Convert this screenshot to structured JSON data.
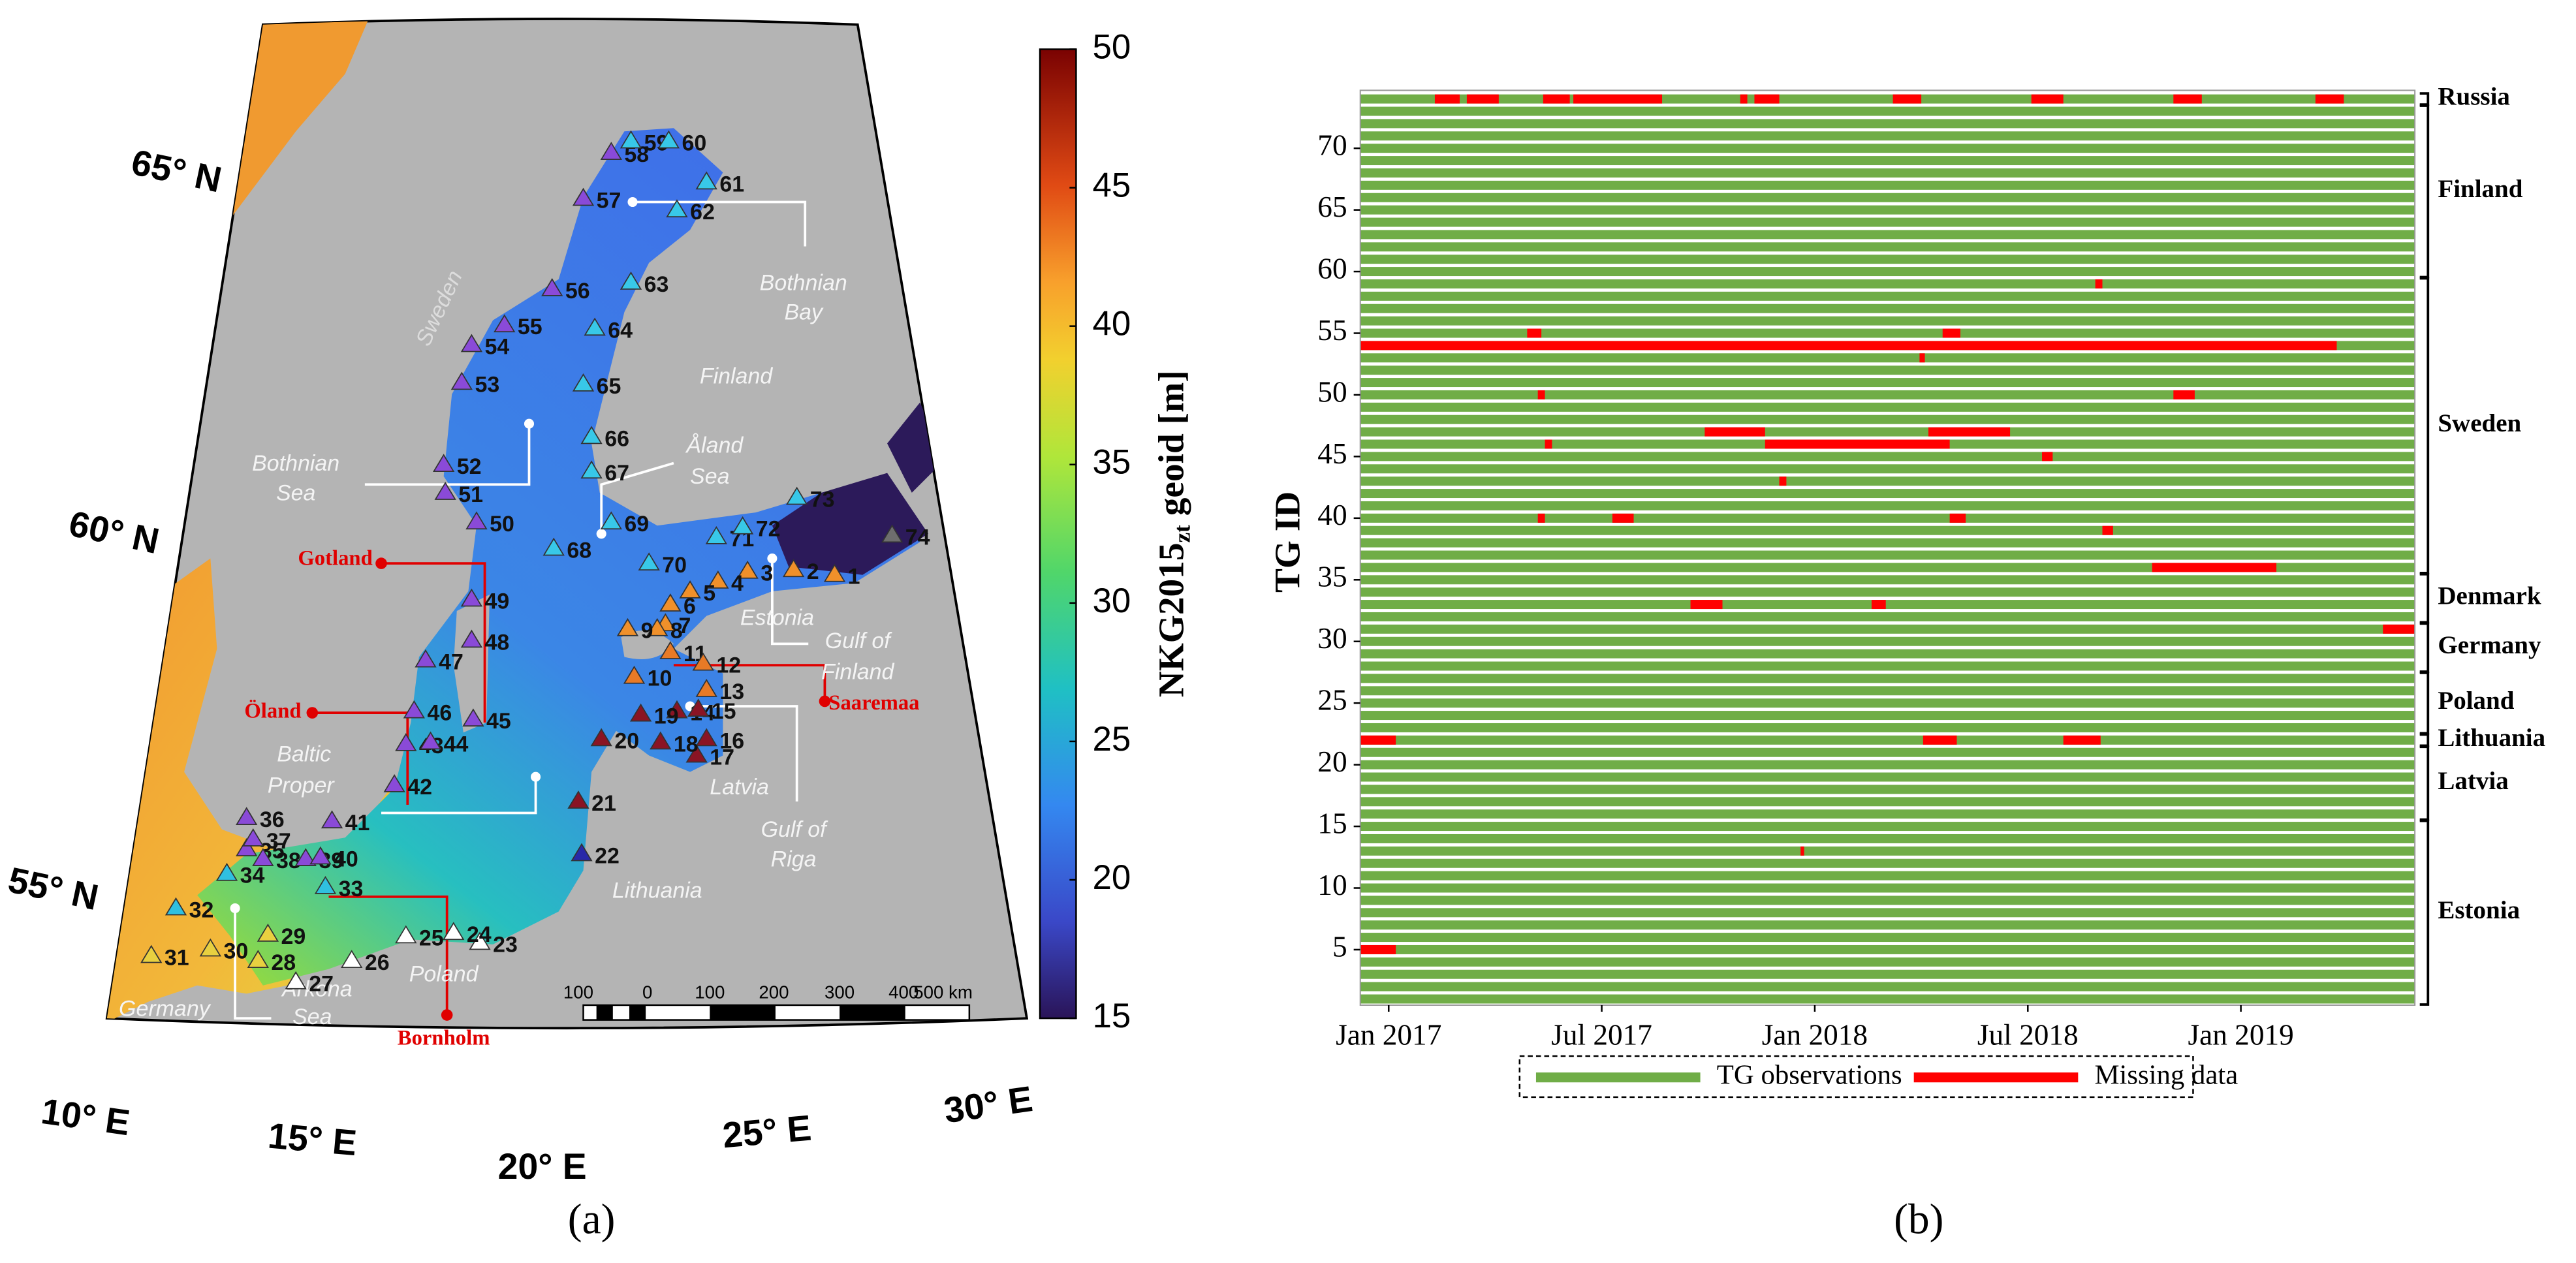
{
  "panel_a": {
    "lat_labels": [
      "65° N",
      "60° N",
      "55° N"
    ],
    "lon_labels": [
      "10° E",
      "15° E",
      "20° E",
      "25° E",
      "30° E"
    ],
    "stations": [
      "1",
      "2",
      "3",
      "4",
      "5",
      "6",
      "7",
      "8",
      "9",
      "10",
      "11",
      "12",
      "13",
      "14",
      "15",
      "16",
      "17",
      "18",
      "19",
      "20",
      "21",
      "22",
      "23",
      "24",
      "25",
      "26",
      "27",
      "28",
      "29",
      "30",
      "31",
      "32",
      "33",
      "34",
      "35",
      "36",
      "37",
      "38",
      "39",
      "40",
      "41",
      "42",
      "43",
      "44",
      "45",
      "46",
      "47",
      "48",
      "49",
      "50",
      "51",
      "52",
      "53",
      "54",
      "55",
      "56",
      "57",
      "58",
      "59",
      "60",
      "61",
      "62",
      "63",
      "64",
      "65",
      "66",
      "67",
      "68",
      "69",
      "70",
      "71",
      "72",
      "73",
      "74"
    ],
    "places": [
      [
        "Sweden"
      ],
      [
        "Finland"
      ],
      [
        "Bothnian",
        "Bay"
      ],
      [
        "Bothnian",
        "Sea"
      ],
      [
        "Åland",
        "Sea"
      ],
      [
        "Estonia"
      ],
      [
        "Gulf of",
        "Finland"
      ],
      [
        "Latvia"
      ],
      [
        "Gulf of",
        "Riga"
      ],
      [
        "Lithuania"
      ],
      [
        "Poland"
      ],
      [
        "Germany"
      ],
      [
        "Arkona",
        "Sea"
      ],
      [
        "Baltic",
        "Proper"
      ]
    ],
    "islands": [
      "Gotland",
      "Öland",
      "Saaremaa",
      "Bornholm"
    ],
    "scale_bar": [
      "100",
      "0",
      "100",
      "200",
      "300",
      "400",
      "500 km"
    ],
    "colorbar": {
      "label": "NKG2015",
      "label_sub": "zt",
      "label_suffix": " geoid [m]",
      "lim": [
        15,
        50
      ],
      "ticks": [
        15,
        20,
        25,
        30,
        35,
        40,
        45,
        50
      ]
    },
    "caption": "(a)"
  },
  "chart_data": {
    "type": "timeline",
    "ylabel": "TG ID",
    "xlim": [
      -0.8,
      28.9
    ],
    "xticks": [
      {
        "value": 0,
        "label": "Jan 2017"
      },
      {
        "value": 6,
        "label": "Jul 2017"
      },
      {
        "value": 12,
        "label": "Jan 2018"
      },
      {
        "value": 18,
        "label": "Jul 2018"
      },
      {
        "value": 24,
        "label": "Jan 2019"
      }
    ],
    "ylim": [
      0.5,
      74.7
    ],
    "yticks": [
      5,
      10,
      15,
      20,
      25,
      30,
      35,
      40,
      45,
      50,
      55,
      60,
      65,
      70
    ],
    "station_ids": [
      1,
      2,
      3,
      4,
      5,
      6,
      7,
      8,
      9,
      10,
      11,
      12,
      13,
      14,
      15,
      16,
      17,
      18,
      19,
      20,
      21,
      22,
      23,
      24,
      25,
      26,
      27,
      28,
      29,
      30,
      31,
      32,
      33,
      34,
      35,
      36,
      37,
      38,
      39,
      40,
      41,
      42,
      43,
      44,
      45,
      46,
      47,
      48,
      49,
      50,
      51,
      52,
      53,
      54,
      55,
      56,
      57,
      58,
      59,
      60,
      61,
      62,
      63,
      64,
      65,
      66,
      67,
      68,
      69,
      70,
      71,
      72,
      73,
      74
    ],
    "series": [
      {
        "name": "TG observations",
        "color": "#70ad47"
      },
      {
        "name": "Missing data",
        "color": "#ff0000",
        "segments": [
          {
            "id": 74,
            "start": 1.3,
            "end": 2.0
          },
          {
            "id": 74,
            "start": 2.2,
            "end": 3.1
          },
          {
            "id": 74,
            "start": 4.35,
            "end": 5.1
          },
          {
            "id": 74,
            "start": 5.2,
            "end": 7.7
          },
          {
            "id": 74,
            "start": 9.9,
            "end": 10.1
          },
          {
            "id": 74,
            "start": 10.3,
            "end": 11.0
          },
          {
            "id": 74,
            "start": 14.2,
            "end": 15.0
          },
          {
            "id": 74,
            "start": 18.1,
            "end": 19.0
          },
          {
            "id": 74,
            "start": 22.1,
            "end": 22.9
          },
          {
            "id": 74,
            "start": 26.1,
            "end": 26.9
          },
          {
            "id": 59,
            "start": 19.9,
            "end": 20.1
          },
          {
            "id": 55,
            "start": 3.9,
            "end": 4.3
          },
          {
            "id": 55,
            "start": 15.6,
            "end": 16.1
          },
          {
            "id": 54,
            "start": -0.8,
            "end": 26.7
          },
          {
            "id": 53,
            "start": 14.95,
            "end": 15.1
          },
          {
            "id": 50,
            "start": 4.2,
            "end": 4.4
          },
          {
            "id": 50,
            "start": 22.1,
            "end": 22.7
          },
          {
            "id": 47,
            "start": 8.9,
            "end": 10.6
          },
          {
            "id": 47,
            "start": 15.2,
            "end": 17.5
          },
          {
            "id": 46,
            "start": 4.4,
            "end": 4.6
          },
          {
            "id": 46,
            "start": 10.6,
            "end": 15.8
          },
          {
            "id": 45,
            "start": 18.4,
            "end": 18.7
          },
          {
            "id": 43,
            "start": 11.0,
            "end": 11.2
          },
          {
            "id": 40,
            "start": 4.2,
            "end": 4.4
          },
          {
            "id": 40,
            "start": 6.3,
            "end": 6.9
          },
          {
            "id": 40,
            "start": 15.8,
            "end": 16.25
          },
          {
            "id": 39,
            "start": 20.1,
            "end": 20.4
          },
          {
            "id": 36,
            "start": 21.5,
            "end": 25.0
          },
          {
            "id": 33,
            "start": 8.5,
            "end": 9.4
          },
          {
            "id": 33,
            "start": 13.6,
            "end": 14.0
          },
          {
            "id": 31,
            "start": 28.0,
            "end": 28.9
          },
          {
            "id": 22,
            "start": -0.8,
            "end": 0.2
          },
          {
            "id": 22,
            "start": 15.05,
            "end": 16.0
          },
          {
            "id": 22,
            "start": 19.0,
            "end": 20.05
          },
          {
            "id": 13,
            "start": 11.6,
            "end": 11.7
          },
          {
            "id": 5,
            "start": -0.8,
            "end": 0.2
          }
        ]
      }
    ],
    "groups": [
      {
        "name": "Russia",
        "from": 74,
        "to": 74
      },
      {
        "name": "Finland",
        "from": 60,
        "to": 73
      },
      {
        "name": "Sweden",
        "from": 36,
        "to": 59
      },
      {
        "name": "Denmark",
        "from": 32,
        "to": 35
      },
      {
        "name": "Germany",
        "from": 28,
        "to": 31
      },
      {
        "name": "Poland",
        "from": 23,
        "to": 27
      },
      {
        "name": "Lithuania",
        "from": 22,
        "to": 22
      },
      {
        "name": "Latvia",
        "from": 16,
        "to": 21
      },
      {
        "name": "Estonia",
        "from": 1,
        "to": 15
      }
    ],
    "caption": "(b)"
  }
}
